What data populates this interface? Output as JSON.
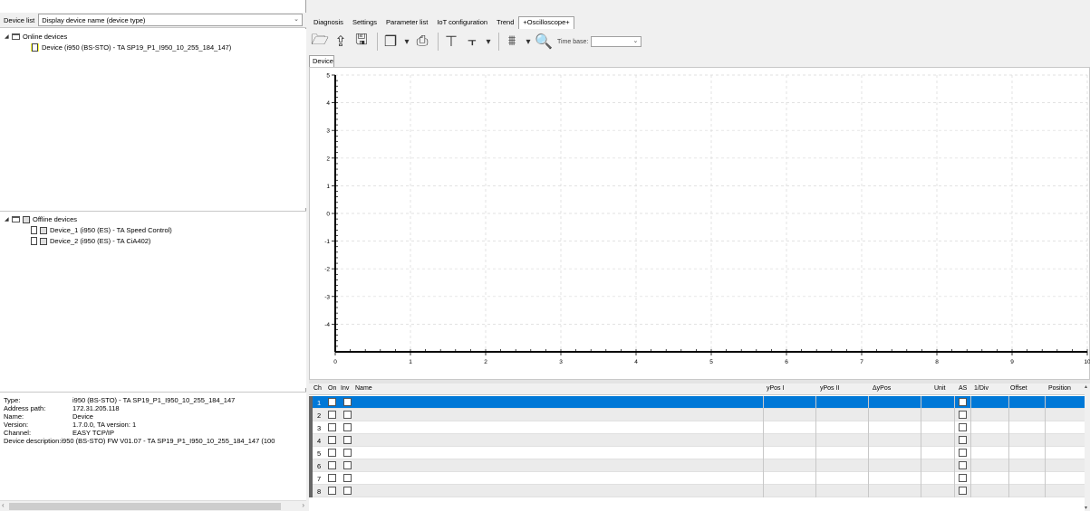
{
  "device_list": {
    "label": "Device list",
    "display_select": "Display device name (device type)",
    "online": {
      "title": "Online devices",
      "devices": [
        "Device (i950 (BS-STO) - TA SP19_P1_I950_10_255_184_147)"
      ]
    },
    "offline": {
      "title": "Offline devices",
      "devices": [
        "Device_1 (i950 (ES) - TA Speed Control)",
        "Device_2 (i950 (ES) - TA CiA402)"
      ]
    }
  },
  "info": [
    {
      "key": "Type:",
      "value": "i950 (BS-STO) - TA SP19_P1_I950_10_255_184_147"
    },
    {
      "key": "Address path:",
      "value": "172.31.205.118"
    },
    {
      "key": "Name:",
      "value": "Device"
    },
    {
      "key": "Version:",
      "value": "1.7.0.0, TA version: 1"
    },
    {
      "key": "Channel:",
      "value": "EASY TCP/IP"
    },
    {
      "key": "Device description:",
      "value": "i950 (BS-STO) FW V01.07 - TA SP19_P1_I950_10_255_184_147 (100"
    }
  ],
  "tabs": [
    "Diagnosis",
    "Settings",
    "Parameter list",
    "IoT configuration",
    "Trend",
    "+Oscilloscope+"
  ],
  "active_tab": 5,
  "toolbar": {
    "icons": [
      "open-folder-icon",
      "upload-icon",
      "save-icon",
      "copy-dropdown-icon",
      "print-icon",
      "cursor-vertical-icon",
      "cursor-horizontal-dropdown-icon",
      "axis-dropdown-icon",
      "zoom-icon"
    ],
    "time_base_label": "Time base:",
    "time_base_value": ""
  },
  "device_tab": "Device",
  "chart_data": {
    "type": "line",
    "x_ticks": [
      "0",
      "1",
      "2",
      "3",
      "4",
      "5",
      "6",
      "7",
      "8",
      "9",
      "10"
    ],
    "y_ticks": [
      "5",
      "4",
      "3",
      "2",
      "1",
      "0",
      "-1",
      "-2",
      "-3",
      "-4"
    ],
    "xlim": [
      0,
      10
    ],
    "ylim": [
      -5,
      5
    ],
    "grid": true,
    "series": []
  },
  "channels": {
    "columns": [
      "Ch",
      "On",
      "Inv",
      "Name",
      "yPos I",
      "yPos II",
      "ΔyPos",
      "Unit",
      "AS",
      "1/Div",
      "Offset",
      "Position"
    ],
    "rows": [
      "1",
      "2",
      "3",
      "4",
      "5",
      "6",
      "7",
      "8"
    ],
    "selected_row": 0
  }
}
